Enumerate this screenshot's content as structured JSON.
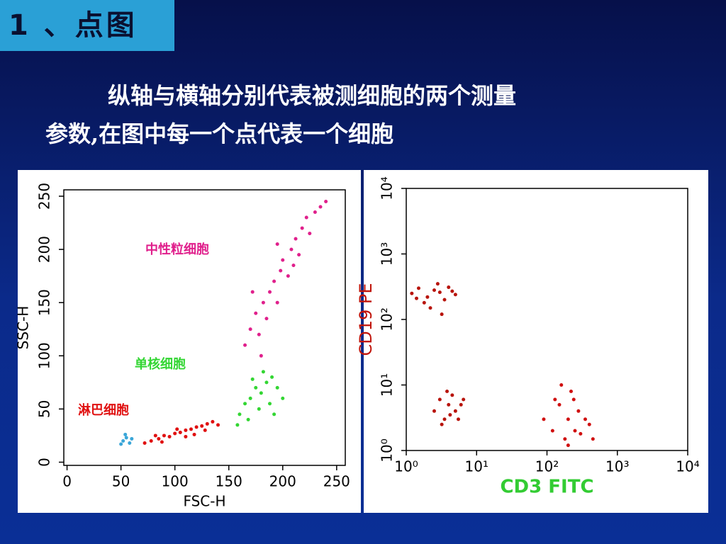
{
  "header": {
    "title": "1 、点图"
  },
  "body": {
    "lines": [
      "纵轴与横轴分别代表被测细胞的两个测量",
      "参数,在图中每一个点代表一个细胞"
    ]
  },
  "chart_data": [
    {
      "type": "scatter",
      "xlabel": "FSC-H",
      "ylabel": "SSC-H",
      "xlim": [
        -3,
        258
      ],
      "ylim": [
        -3,
        256
      ],
      "xticks": [
        0,
        50,
        100,
        150,
        200,
        250
      ],
      "yticks": [
        0,
        50,
        100,
        150,
        200,
        250
      ],
      "series": [
        {
          "name": "中性粒细胞",
          "color": "#e0208c",
          "x": [
            165,
            170,
            175,
            178,
            182,
            185,
            188,
            192,
            195,
            198,
            200,
            205,
            208,
            212,
            215,
            218,
            222,
            225,
            230,
            235,
            240,
            172,
            180,
            210,
            195
          ],
          "values": [
            110,
            125,
            140,
            120,
            150,
            135,
            160,
            170,
            150,
            180,
            190,
            175,
            200,
            210,
            195,
            220,
            230,
            215,
            235,
            240,
            245,
            160,
            100,
            185,
            205
          ]
        },
        {
          "name": "单核细胞",
          "color": "#33d633",
          "x": [
            160,
            165,
            170,
            175,
            180,
            185,
            190,
            178,
            168,
            188,
            195,
            182,
            172,
            200,
            158,
            192
          ],
          "values": [
            45,
            55,
            60,
            70,
            65,
            75,
            80,
            50,
            40,
            55,
            70,
            85,
            78,
            60,
            35,
            45
          ]
        },
        {
          "name": "淋巴细胞",
          "color": "#e01010",
          "x": [
            72,
            78,
            85,
            90,
            95,
            100,
            105,
            110,
            115,
            120,
            125,
            130,
            135,
            140,
            88,
            102,
            118,
            128,
            82,
            110
          ],
          "values": [
            18,
            20,
            22,
            25,
            24,
            27,
            28,
            30,
            31,
            33,
            34,
            36,
            38,
            35,
            19,
            31,
            26,
            30,
            25,
            24
          ]
        },
        {
          "color": "#3aa6d8",
          "x": [
            52,
            55,
            58,
            54,
            60,
            50
          ],
          "values": [
            20,
            23,
            18,
            26,
            22,
            17
          ]
        }
      ]
    },
    {
      "type": "scatter",
      "xlabel": "CD3 FITC",
      "ylabel": "CD19 PE",
      "xscale": "log",
      "yscale": "log",
      "xlim": [
        1,
        10000
      ],
      "ylim": [
        1,
        10000
      ],
      "xticks": [
        {
          "value": 1,
          "label": "10⁰"
        },
        {
          "value": 10,
          "label": "10¹"
        },
        {
          "value": 100,
          "label": "10²"
        },
        {
          "value": 1000,
          "label": "10³"
        },
        {
          "value": 10000,
          "label": "10⁴"
        }
      ],
      "yticks": [
        {
          "value": 1,
          "label": "10⁰"
        },
        {
          "value": 10,
          "label": "10¹"
        },
        {
          "value": 100,
          "label": "10²"
        },
        {
          "value": 1000,
          "label": "10³"
        },
        {
          "value": 10000,
          "label": "10⁴"
        }
      ],
      "series": [
        {
          "color": "#b8140c",
          "x": [
            1.2,
            1.5,
            2,
            2.5,
            3,
            3.5,
            4,
            1.8,
            2.8,
            5,
            2.2,
            3.2,
            1.4,
            4.5
          ],
          "values": [
            250,
            300,
            220,
            280,
            260,
            200,
            310,
            180,
            350,
            240,
            150,
            120,
            210,
            270
          ]
        },
        {
          "color": "#b8140c",
          "x": [
            2.5,
            3,
            3.5,
            4,
            4.5,
            5,
            5.5,
            6,
            3.2,
            4.2,
            6.5,
            3.8
          ],
          "values": [
            4,
            6,
            3,
            5,
            7,
            4,
            3,
            5,
            2.5,
            3.5,
            6,
            8
          ]
        },
        {
          "color": "#d01010",
          "x": [
            90,
            120,
            150,
            180,
            200,
            220,
            250,
            280,
            300,
            350,
            400,
            160,
            240,
            200,
            130,
            450
          ],
          "values": [
            3,
            2,
            5,
            1.5,
            3,
            8,
            2,
            4,
            1.8,
            3,
            2.5,
            10,
            6,
            1.2,
            6,
            1.5
          ]
        }
      ]
    }
  ]
}
